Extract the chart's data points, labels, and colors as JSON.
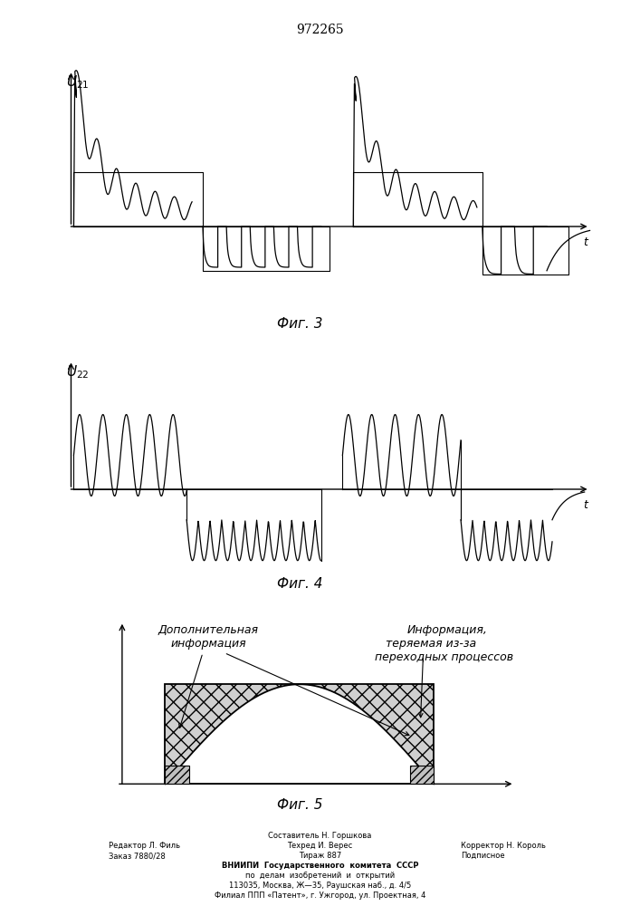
{
  "title": "972265",
  "fig3_label": "Фиг. 3",
  "fig4_label": "Фиг. 4",
  "fig5_label": "Фиг. 5",
  "u21_label": "U21",
  "u22_label": "U22",
  "t_label": "t",
  "ann_left1": "Дополнительная",
  "ann_left2": "информация",
  "ann_right1": "Информация,",
  "ann_right2": "теряемая из-за",
  "ann_right3": "переходных процессов",
  "footer_line1": "Составитель Н. Горшкова",
  "footer_line2a": "Редактор Л. Филь",
  "footer_line2b": "Техред И. Верес",
  "footer_line2c": "Корректор Н. Король",
  "footer_line3a": "Заказ 7880/28",
  "footer_line3b": "Тираж 887",
  "footer_line3c": "Подписное",
  "footer_line4": "ВНИИПИ  Государственного  комитета  СССР",
  "footer_line5": "по  делам  изобретений  и  открытий",
  "footer_line6": "113035, Москва, Ж—35, Раушская наб., д. 4/5",
  "footer_line7": "Филиал ППП «Патент», г. Ужгород, ул. Проектная, 4",
  "bg_color": "#ffffff",
  "line_color": "#000000"
}
